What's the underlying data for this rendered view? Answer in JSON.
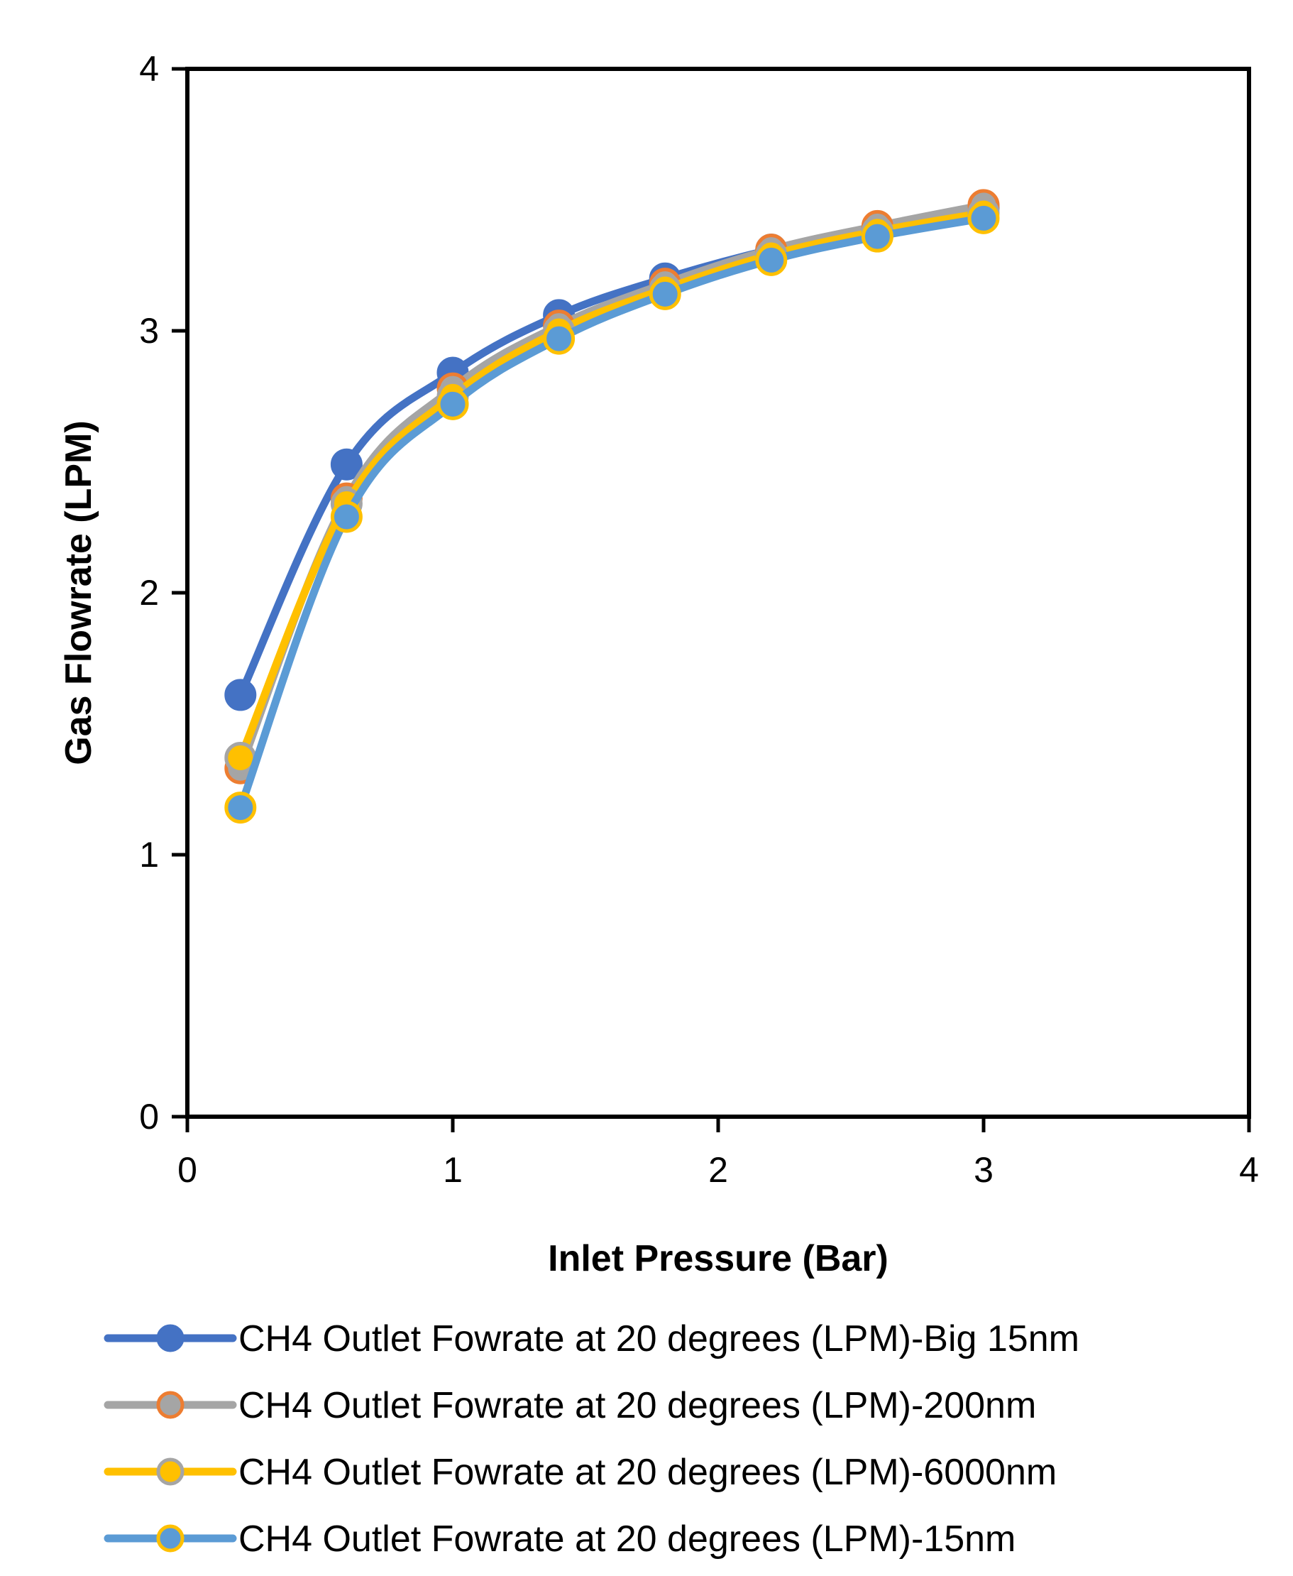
{
  "chart_data": {
    "type": "line",
    "title": "",
    "xlabel": "Inlet Pressure (Bar)",
    "ylabel": "Gas Flowrate (LPM)",
    "xlim": [
      0,
      4
    ],
    "ylim": [
      0,
      4
    ],
    "xticks": [
      0,
      1,
      2,
      3,
      4
    ],
    "yticks": [
      0,
      1,
      2,
      3,
      4
    ],
    "xtick_labels": [
      "0",
      "1",
      "2",
      "3",
      "4"
    ],
    "ytick_labels": [
      "0",
      "1",
      "2",
      "3",
      "4"
    ],
    "grid": false,
    "legend_position": "bottom",
    "series": [
      {
        "name": "CH4 Outlet Fowrate at 20 degrees (LPM)-Big 15nm",
        "line_color": "#4472C4",
        "marker_fill": "#4472C4",
        "marker_edge": "#4472C4",
        "x": [
          0.2,
          0.6,
          1.0,
          1.4,
          1.8,
          2.2,
          2.6,
          3.0
        ],
        "y": [
          1.61,
          2.49,
          2.84,
          3.06,
          3.2,
          3.31,
          3.39,
          3.47
        ]
      },
      {
        "name": "CH4 Outlet Fowrate at 20 degrees (LPM)-200nm",
        "line_color": "#A5A5A5",
        "marker_fill": "#A5A5A5",
        "marker_edge": "#ED7D31",
        "x": [
          0.2,
          0.6,
          1.0,
          1.4,
          1.8,
          2.2,
          2.6,
          3.0
        ],
        "y": [
          1.33,
          2.36,
          2.78,
          3.02,
          3.18,
          3.31,
          3.4,
          3.48
        ]
      },
      {
        "name": "CH4 Outlet Fowrate at 20 degrees (LPM)-6000nm",
        "line_color": "#FFC000",
        "marker_fill": "#FFC000",
        "marker_edge": "#A5A5A5",
        "x": [
          0.2,
          0.6,
          1.0,
          1.4,
          1.8,
          2.2,
          2.6,
          3.0
        ],
        "y": [
          1.37,
          2.34,
          2.75,
          3.0,
          3.16,
          3.29,
          3.38,
          3.45
        ]
      },
      {
        "name": "CH4 Outlet Fowrate at 20 degrees (LPM)-15nm",
        "line_color": "#5B9BD5",
        "marker_fill": "#5B9BD5",
        "marker_edge": "#FFC000",
        "x": [
          0.2,
          0.6,
          1.0,
          1.4,
          1.8,
          2.2,
          2.6,
          3.0
        ],
        "y": [
          1.18,
          2.29,
          2.72,
          2.97,
          3.14,
          3.27,
          3.36,
          3.43
        ]
      }
    ]
  }
}
